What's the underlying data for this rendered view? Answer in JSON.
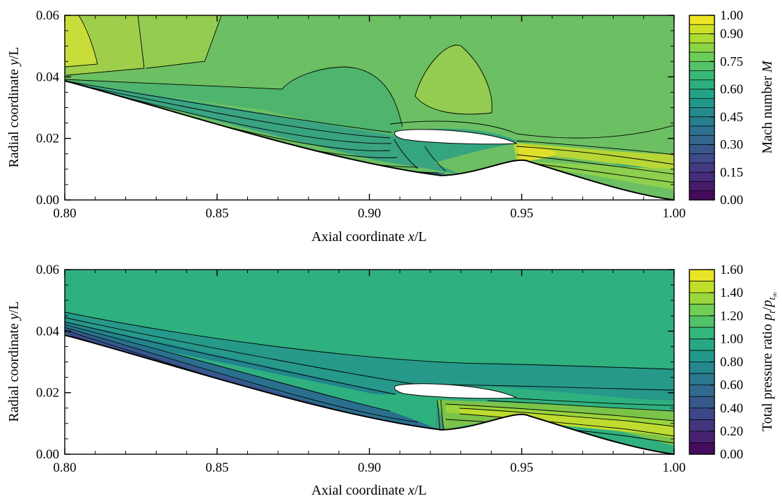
{
  "chart_data": [
    {
      "type": "heatmap",
      "xlabel_pre": "Axial coordinate ",
      "xlabel_var": "x",
      "xlabel_post": "/L",
      "ylabel_pre": "Radial coordinate ",
      "ylabel_var": "y",
      "ylabel_post": "/L",
      "xlim": [
        0.8,
        1.0
      ],
      "ylim": [
        0.0,
        0.06
      ],
      "xticks": [
        "0.80",
        "0.85",
        "0.90",
        "0.95",
        "1.00"
      ],
      "yticks": [
        "0.00",
        "0.02",
        "0.04",
        "0.06"
      ],
      "colorbar": {
        "label_pre": "Mach number ",
        "label_var": "M",
        "range": [
          0.0,
          1.0
        ],
        "levels": 20,
        "ticks": [
          "1.00",
          "0.90",
          "0.75",
          "0.60",
          "0.45",
          "0.30",
          "0.15",
          "0.00"
        ]
      },
      "field_regions": [
        {
          "name": "freestream",
          "level": 0.78
        },
        {
          "name": "upper-left high-speed pocket",
          "level": 0.93
        },
        {
          "name": "shock bubble above cowl",
          "level": 0.84
        },
        {
          "name": "ramp boundary layer",
          "level": 0.45
        },
        {
          "name": "cowl shear layer",
          "level": 0.97
        }
      ]
    },
    {
      "type": "heatmap",
      "xlabel_pre": "Axial coordinate ",
      "xlabel_var": "x",
      "xlabel_post": "/L",
      "ylabel_pre": "Radial coordinate ",
      "ylabel_var": "y",
      "ylabel_post": "/L",
      "xlim": [
        0.8,
        1.0
      ],
      "ylim": [
        0.0,
        0.06
      ],
      "xticks": [
        "0.80",
        "0.85",
        "0.90",
        "0.95",
        "1.00"
      ],
      "yticks": [
        "0.00",
        "0.02",
        "0.04",
        "0.06"
      ],
      "colorbar": {
        "label_pre": "Total pressure ratio ",
        "label_var": "p",
        "label_sub": "t",
        "label_mid": "/",
        "label_var2": "p",
        "label_sub2": "t",
        "label_subsub2": "∞",
        "range": [
          0.0,
          1.6
        ],
        "levels": 16,
        "ticks": [
          "1.60",
          "1.40",
          "1.20",
          "1.00",
          "0.80",
          "0.60",
          "0.40",
          "0.20",
          "0.00"
        ]
      },
      "field_regions": [
        {
          "name": "freestream",
          "level": 1.0
        },
        {
          "name": "ramp boundary layer",
          "level": 0.45
        },
        {
          "name": "duct after shock",
          "level": 1.4
        }
      ]
    }
  ],
  "colors": {
    "viridis": [
      "#440154",
      "#482878",
      "#3e4989",
      "#31688e",
      "#26828e",
      "#1f9e89",
      "#35b779",
      "#6ece58",
      "#b5de2b",
      "#fde725"
    ]
  }
}
